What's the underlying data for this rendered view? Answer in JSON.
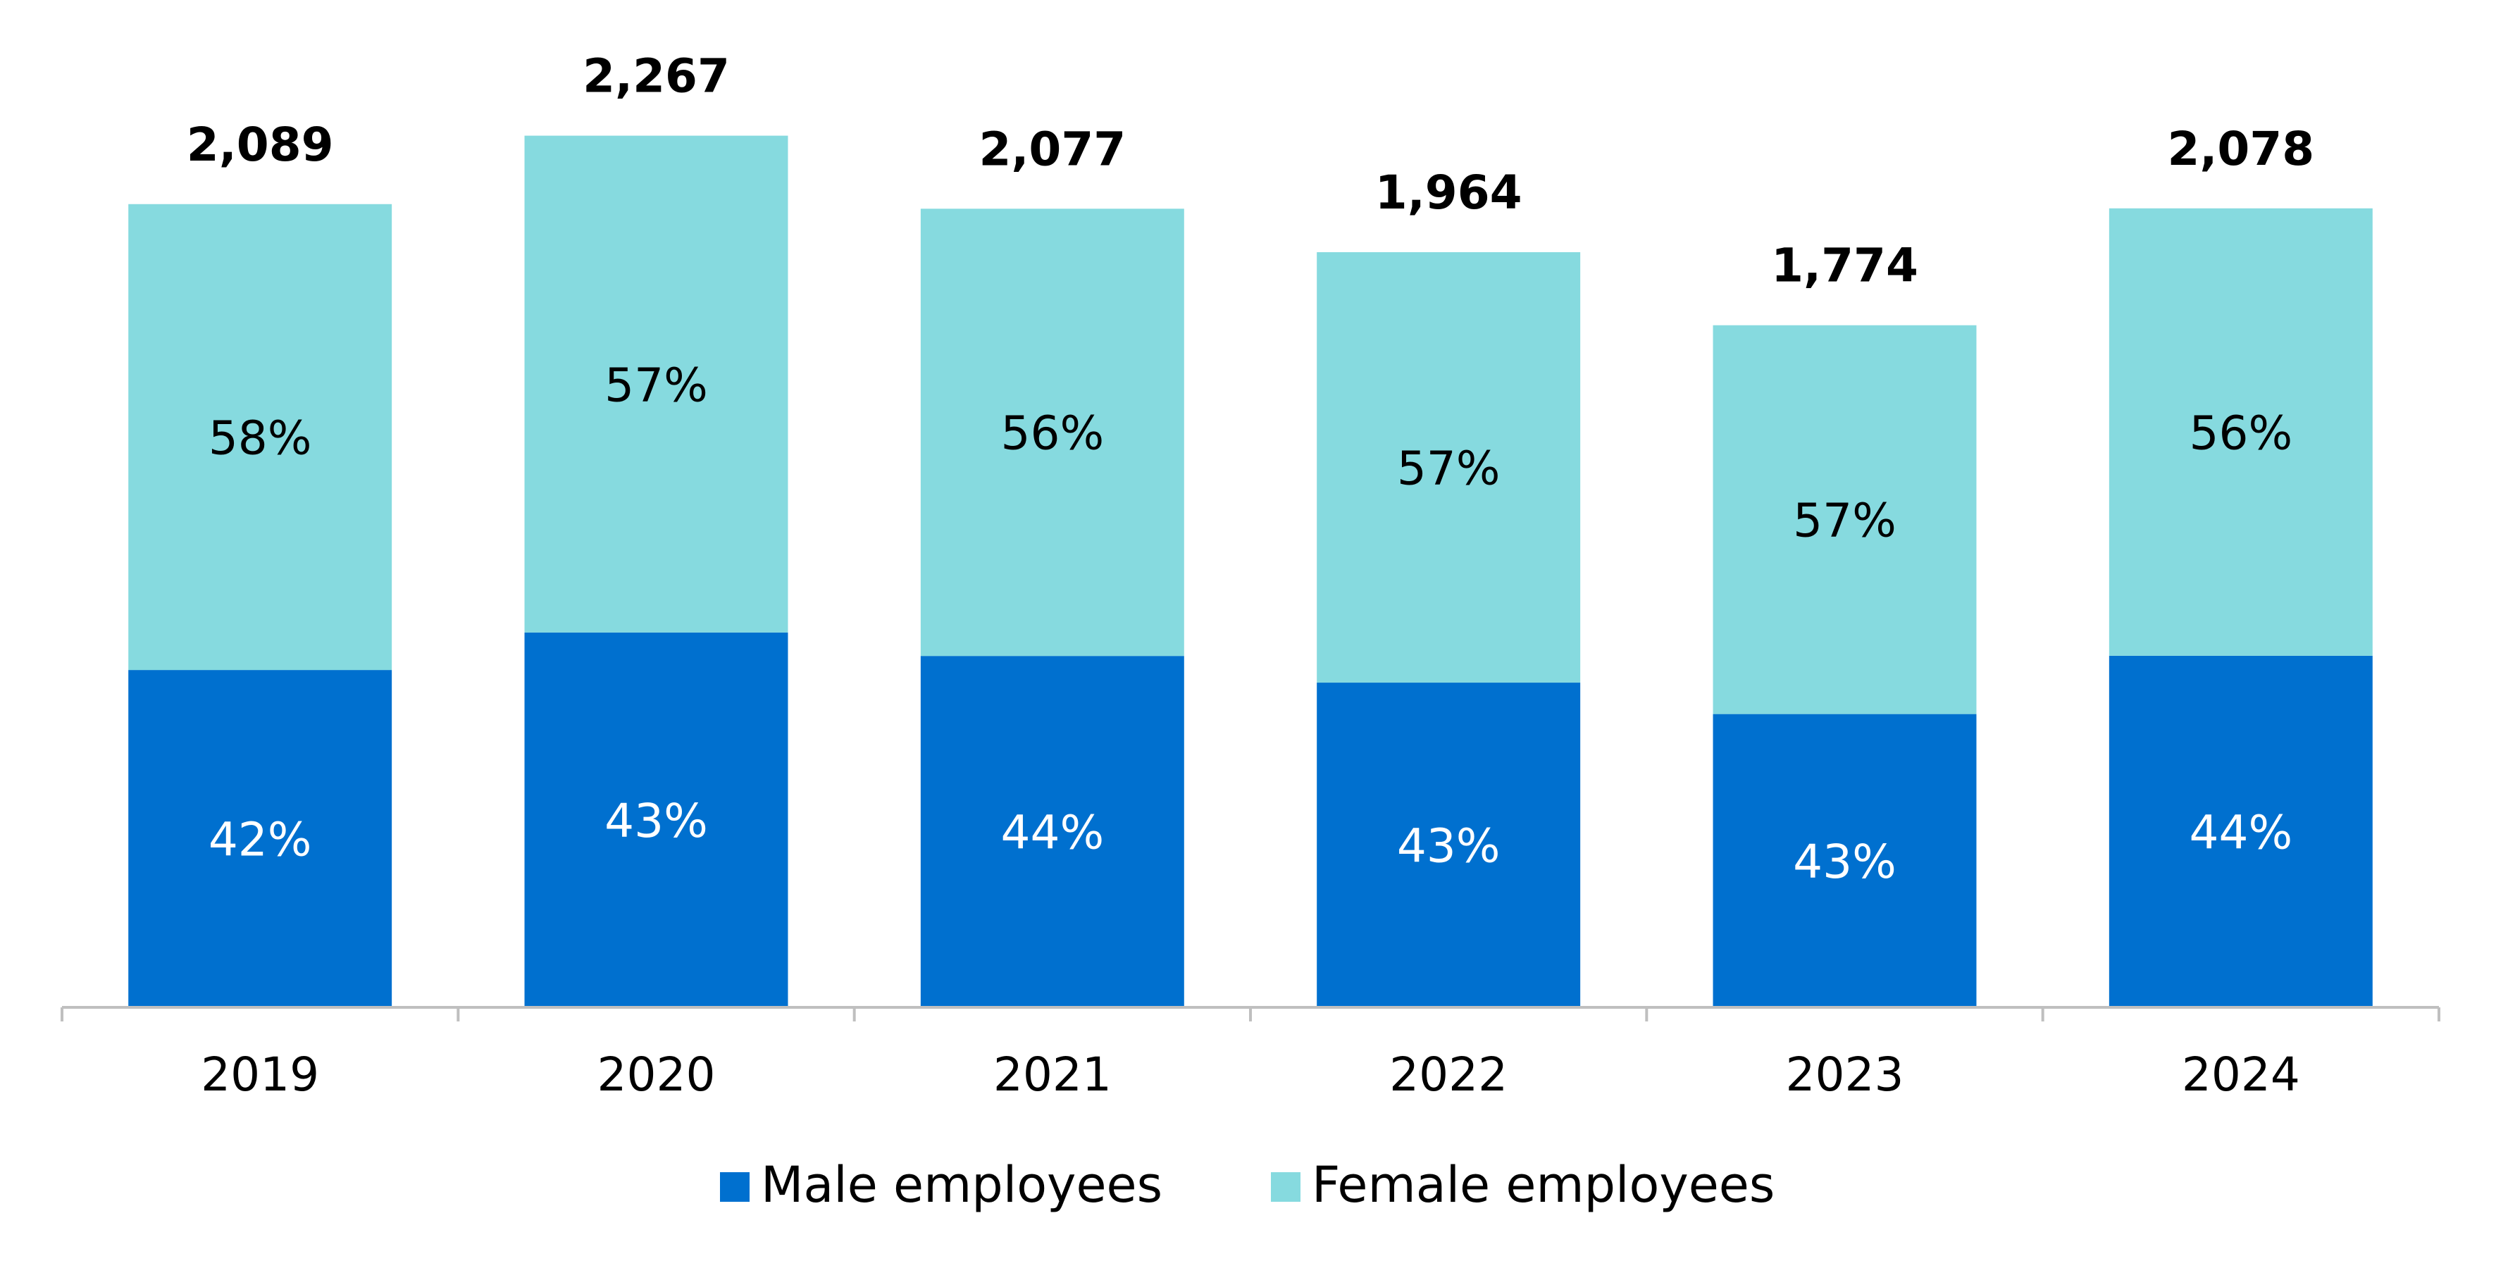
{
  "chart_data": {
    "type": "bar",
    "stacked": true,
    "categories": [
      "2019",
      "2020",
      "2021",
      "2022",
      "2023",
      "2024"
    ],
    "totals": [
      2089,
      2267,
      2077,
      1964,
      1774,
      2078
    ],
    "total_labels": [
      "2,089",
      "2,267",
      "2,077",
      "1,964",
      "1,774",
      "2,078"
    ],
    "series": [
      {
        "name": "Male employees",
        "color": "#0070CF",
        "label_color": "#FFFFFF",
        "shares": [
          42,
          43,
          44,
          43,
          43,
          44
        ],
        "labels": [
          "42%",
          "43%",
          "44%",
          "43%",
          "43%",
          "44%"
        ]
      },
      {
        "name": "Female employees",
        "color": "#86DADF",
        "label_color": "#000000",
        "shares": [
          58,
          57,
          56,
          57,
          57,
          56
        ],
        "labels": [
          "58%",
          "57%",
          "56%",
          "57%",
          "57%",
          "56%"
        ]
      }
    ],
    "ylim": [
      0,
      2400
    ],
    "grid": false,
    "legend_position": "bottom"
  }
}
